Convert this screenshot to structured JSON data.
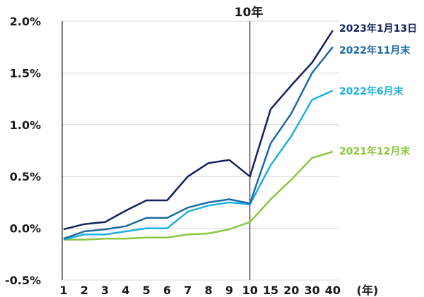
{
  "chart_data": {
    "type": "line",
    "title": "",
    "xlabel": "(年)",
    "ylabel": "",
    "ylim": [
      -0.5,
      2.0
    ],
    "yticks": [
      "-0.5%",
      "0.0%",
      "0.5%",
      "1.0%",
      "1.5%",
      "2.0%"
    ],
    "ytick_values": [
      -0.5,
      0.0,
      0.5,
      1.0,
      1.5,
      2.0
    ],
    "categories": [
      "1",
      "2",
      "3",
      "4",
      "5",
      "6",
      "7",
      "8",
      "9",
      "10",
      "15",
      "20",
      "30",
      "40"
    ],
    "annotation": "10年",
    "annotation_category": "10",
    "series": [
      {
        "name": "2023年1月13日",
        "color": "#14215e",
        "values": [
          -0.01,
          0.04,
          0.06,
          0.17,
          0.27,
          0.27,
          0.5,
          0.63,
          0.66,
          0.5,
          1.15,
          1.38,
          1.6,
          1.91
        ]
      },
      {
        "name": "2022年11月末",
        "color": "#1b6aa6",
        "values": [
          -0.1,
          -0.03,
          -0.01,
          0.02,
          0.1,
          0.1,
          0.2,
          0.25,
          0.28,
          0.24,
          0.82,
          1.11,
          1.5,
          1.75
        ]
      },
      {
        "name": "2022年6月末",
        "color": "#1fb0e0",
        "values": [
          -0.11,
          -0.06,
          -0.06,
          -0.03,
          0.0,
          0.0,
          0.16,
          0.22,
          0.25,
          0.23,
          0.61,
          0.89,
          1.24,
          1.33
        ]
      },
      {
        "name": "2021年12月末",
        "color": "#8cc63f",
        "values": [
          -0.11,
          -0.11,
          -0.1,
          -0.1,
          -0.09,
          -0.09,
          -0.06,
          -0.05,
          -0.01,
          0.06,
          0.28,
          0.47,
          0.68,
          0.74
        ]
      }
    ]
  }
}
